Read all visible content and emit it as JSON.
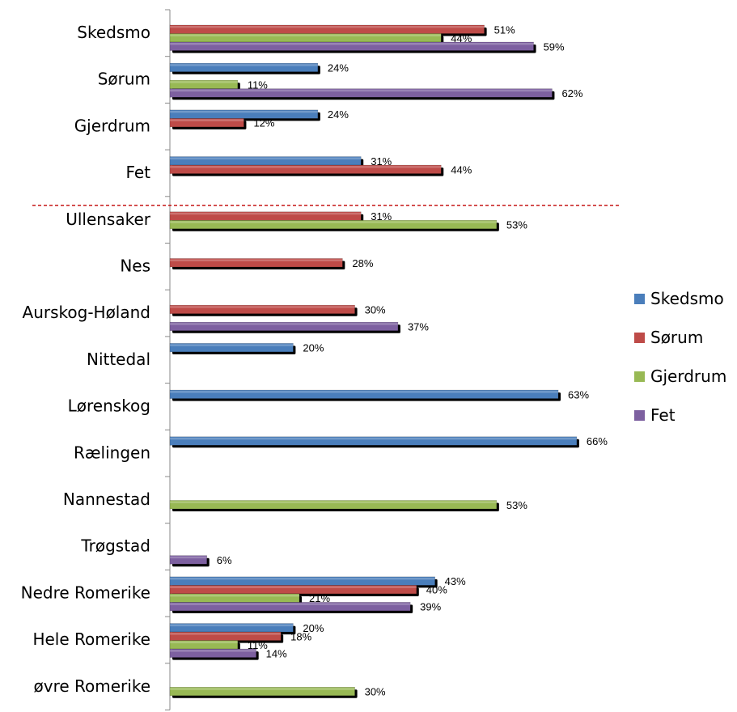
{
  "chart_data": {
    "type": "bar",
    "orientation": "horizontal",
    "categories": [
      "Skedsmo",
      "Sørum",
      "Gjerdrum",
      "Fet",
      "Ullensaker",
      "Nes",
      "Aurskog-Høland",
      "Nittedal",
      "Lørenskog",
      "Rælingen",
      "Nannestad",
      "Trøgstad",
      "Nedre Romerike",
      "Hele Romerike",
      "øvre Romerike"
    ],
    "series": [
      {
        "name": "Skedsmo",
        "color": "#4a7ebb",
        "values": [
          null,
          24,
          24,
          31,
          null,
          null,
          null,
          20,
          63,
          66,
          null,
          null,
          43,
          20,
          null
        ]
      },
      {
        "name": "Sørum",
        "color": "#be4b48",
        "values": [
          51,
          null,
          12,
          44,
          31,
          28,
          30,
          null,
          null,
          null,
          null,
          null,
          40,
          18,
          null
        ]
      },
      {
        "name": "Gjerdrum",
        "color": "#98b954",
        "values": [
          44,
          11,
          null,
          null,
          53,
          null,
          null,
          null,
          null,
          null,
          53,
          null,
          21,
          11,
          30
        ]
      },
      {
        "name": "Fet",
        "color": "#7d60a0",
        "values": [
          59,
          62,
          null,
          null,
          null,
          null,
          37,
          null,
          null,
          null,
          null,
          6,
          39,
          14,
          null
        ]
      }
    ],
    "value_format": "percent",
    "separator_after_category": "Fet",
    "separator_color": "#c00000",
    "legend_position": "right",
    "grid": false
  }
}
